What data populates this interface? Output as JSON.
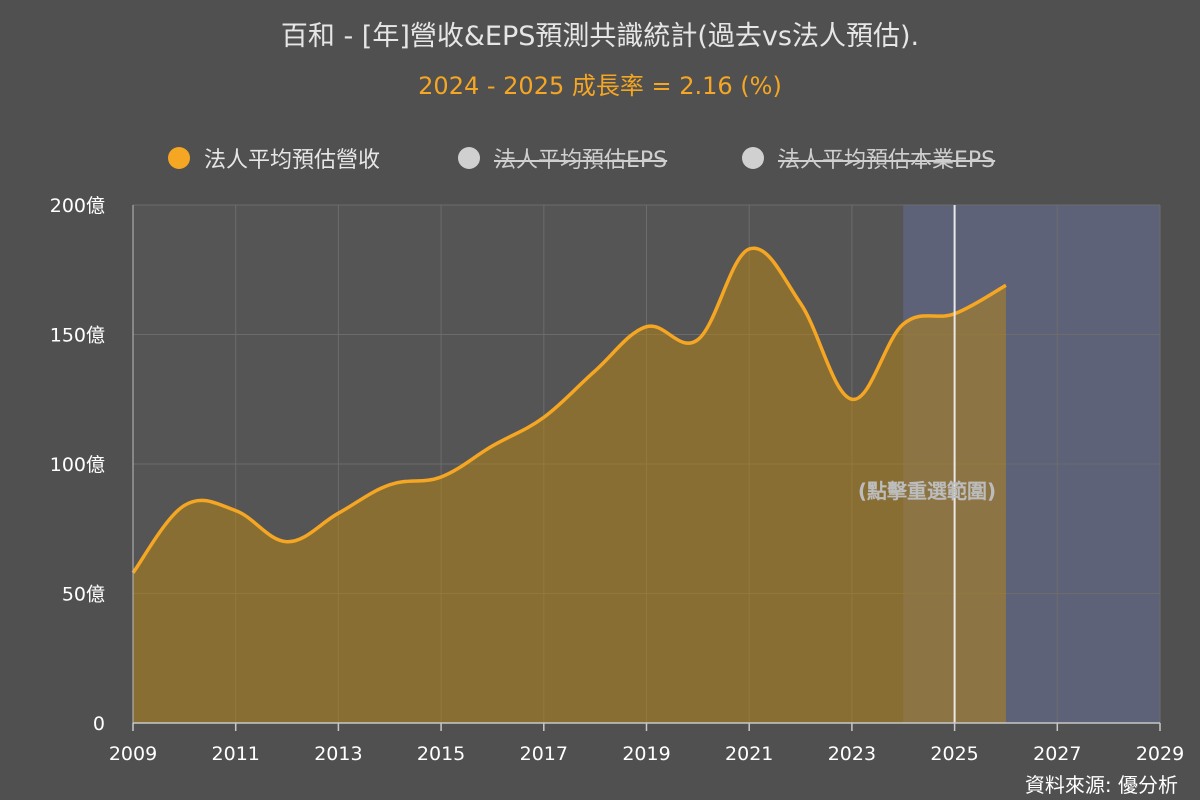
{
  "title": "百和 - [年]營收&EPS預測共識統計(過去vs法人預估).",
  "subtitle": "2024 - 2025 成長率 = 2.16 (%)",
  "legend": [
    {
      "label": "法人平均預估營收",
      "color": "#f5a623",
      "active": true
    },
    {
      "label": "法人平均預估EPS",
      "color": "#d0d0d0",
      "active": false
    },
    {
      "label": "法人平均預估本業EPS",
      "color": "#d0d0d0",
      "active": false
    }
  ],
  "annotation": "(點擊重選範圍)",
  "source": "資料來源: 優分析",
  "chart_data": {
    "type": "area",
    "x": [
      2009,
      2010,
      2011,
      2012,
      2013,
      2014,
      2015,
      2016,
      2017,
      2018,
      2019,
      2020,
      2021,
      2022,
      2023,
      2024,
      2025,
      2026
    ],
    "series": [
      {
        "name": "法人平均預估營收",
        "values": [
          58,
          84,
          82,
          70,
          81,
          92,
          95,
          107,
          118,
          136,
          153,
          148,
          183,
          162,
          125,
          154,
          158,
          169
        ]
      }
    ],
    "xlim": [
      2009,
      2029
    ],
    "ylim": [
      0,
      200
    ],
    "x_ticks": [
      "2009",
      "2011",
      "2013",
      "2015",
      "2017",
      "2019",
      "2021",
      "2023",
      "2025",
      "2027",
      "2029"
    ],
    "y_ticks": [
      "0",
      "50億",
      "100億",
      "150億",
      "200億"
    ],
    "y_tick_values": [
      0,
      50,
      100,
      150,
      200
    ],
    "forecast_start": 2024,
    "current_year": 2025,
    "grid": true,
    "legend_position": "top"
  }
}
